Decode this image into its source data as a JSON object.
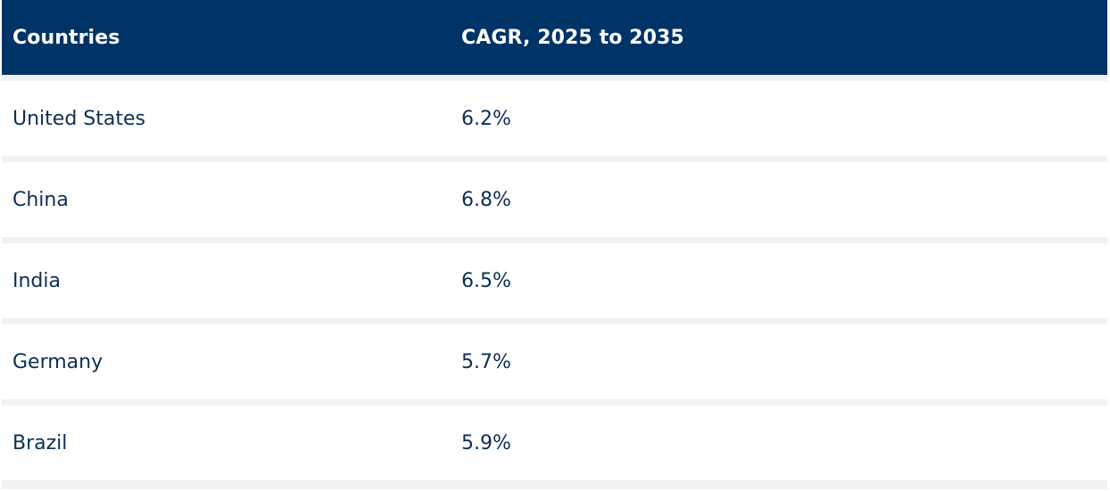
{
  "table": {
    "headers": [
      "Countries",
      "CAGR, 2025 to 2035"
    ],
    "rows": [
      {
        "country": "United States",
        "cagr": "6.2%"
      },
      {
        "country": "China",
        "cagr": "6.8%"
      },
      {
        "country": "India",
        "cagr": "6.5%"
      },
      {
        "country": "Germany",
        "cagr": "5.7%"
      },
      {
        "country": "Brazil",
        "cagr": "5.9%"
      }
    ]
  },
  "colors": {
    "header_bg": "#003366",
    "header_text": "#ffffff",
    "row_text": "#0d2e55",
    "row_bg": "#ffffff",
    "separator": "#f1f2f3"
  }
}
